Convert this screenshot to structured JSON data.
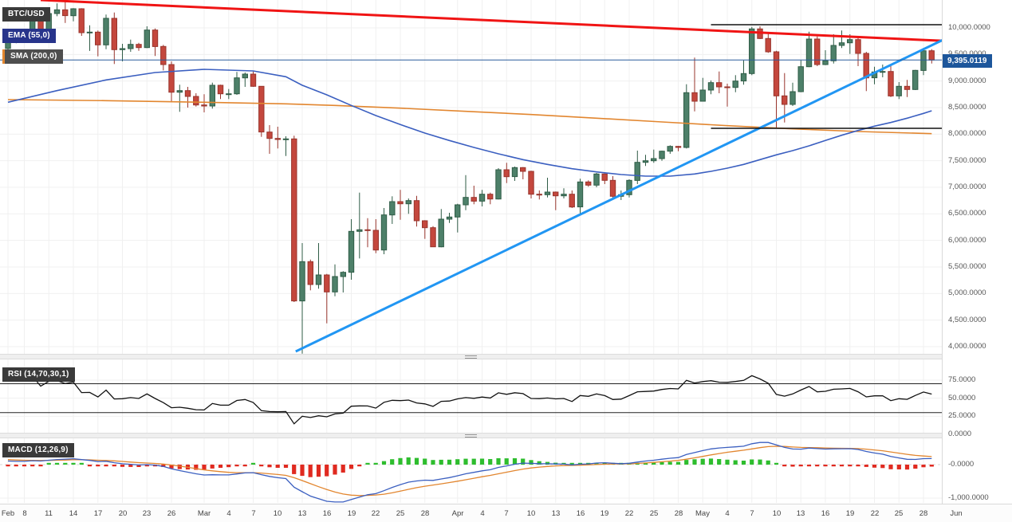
{
  "legend": {
    "symbol": "BTC/USD",
    "ema": "EMA (55,0)",
    "sma": "SMA (200,0)",
    "rsi": "RSI (14,70,30,1)",
    "macd": "MACD (12,26,9)"
  },
  "chart_data": {
    "type": "candlestick",
    "symbol": "BTC/USD",
    "colors": {
      "up": "#4d8069",
      "up_border": "#2f5c46",
      "down": "#c4473d",
      "down_border": "#98342c",
      "ema": "#3b5fc0",
      "sma": "#e2862f",
      "trend_red": "#f01414",
      "trend_blue": "#2196f3",
      "rsi_line": "#111111",
      "macd_line": "#3b5fc0",
      "macd_signal": "#e2862f",
      "hist_pos": "#2ebd2e",
      "hist_neg": "#e02a20",
      "price_line": "#2a5c9c",
      "price_badge_bg": "#1d569b"
    },
    "x_ticks": [
      [
        "Feb",
        0
      ],
      [
        "8",
        2
      ],
      [
        "11",
        5
      ],
      [
        "14",
        8
      ],
      [
        "17",
        11
      ],
      [
        "20",
        14
      ],
      [
        "23",
        17
      ],
      [
        "26",
        20
      ],
      [
        "Mar",
        24
      ],
      [
        "4",
        27
      ],
      [
        "7",
        30
      ],
      [
        "10",
        33
      ],
      [
        "13",
        36
      ],
      [
        "16",
        39
      ],
      [
        "19",
        42
      ],
      [
        "22",
        45
      ],
      [
        "25",
        48
      ],
      [
        "28",
        51
      ],
      [
        "Apr",
        55
      ],
      [
        "4",
        58
      ],
      [
        "7",
        61
      ],
      [
        "10",
        64
      ],
      [
        "13",
        67
      ],
      [
        "16",
        70
      ],
      [
        "19",
        73
      ],
      [
        "22",
        76
      ],
      [
        "25",
        79
      ],
      [
        "28",
        82
      ],
      [
        "May",
        85
      ],
      [
        "4",
        88
      ],
      [
        "7",
        91
      ],
      [
        "10",
        94
      ],
      [
        "13",
        97
      ],
      [
        "16",
        100
      ],
      [
        "19",
        103
      ],
      [
        "22",
        106
      ],
      [
        "25",
        109
      ],
      [
        "28",
        112
      ],
      [
        "Jun",
        116
      ]
    ],
    "candles": [
      [
        9613,
        9768,
        9589,
        9758
      ],
      [
        9758,
        9880,
        9711,
        9800
      ],
      [
        9800,
        9945,
        9745,
        9900
      ],
      [
        9900,
        10160,
        9859,
        10150
      ],
      [
        10150,
        10200,
        9717,
        9850
      ],
      [
        9850,
        10310,
        9813,
        10270
      ],
      [
        10270,
        10460,
        10219,
        10340
      ],
      [
        10340,
        10500,
        10093,
        10230
      ],
      [
        10230,
        10370,
        10123,
        10360
      ],
      [
        10360,
        10370,
        9850,
        9910
      ],
      [
        9910,
        10050,
        9566,
        9920
      ],
      [
        9920,
        9950,
        9465,
        9680
      ],
      [
        9680,
        10250,
        9600,
        10180
      ],
      [
        10180,
        10290,
        9320,
        9590
      ],
      [
        9590,
        9700,
        9370,
        9610
      ],
      [
        9610,
        9780,
        9550,
        9690
      ],
      [
        9690,
        9720,
        9570,
        9630
      ],
      [
        9630,
        10030,
        9620,
        9960
      ],
      [
        9960,
        9990,
        9470,
        9650
      ],
      [
        9650,
        9680,
        9200,
        9310
      ],
      [
        9310,
        9370,
        8600,
        8790
      ],
      [
        8790,
        8930,
        8420,
        8820
      ],
      [
        8820,
        8890,
        8500,
        8710
      ],
      [
        8710,
        8770,
        8520,
        8550
      ],
      [
        8550,
        8750,
        8410,
        8530
      ],
      [
        8530,
        8970,
        8480,
        8920
      ],
      [
        8920,
        8930,
        8660,
        8760
      ],
      [
        8760,
        8850,
        8660,
        8760
      ],
      [
        8760,
        9170,
        8740,
        9060
      ],
      [
        9060,
        9160,
        8890,
        9130
      ],
      [
        9130,
        9180,
        8890,
        8900
      ],
      [
        8900,
        8900,
        7950,
        8040
      ],
      [
        8040,
        8170,
        7630,
        7920
      ],
      [
        7920,
        8140,
        7730,
        7900
      ],
      [
        7900,
        7960,
        7590,
        7910
      ],
      [
        7910,
        7970,
        4840,
        4860
      ],
      [
        4860,
        5950,
        3870,
        5600
      ],
      [
        5600,
        5640,
        5060,
        5170
      ],
      [
        5170,
        5950,
        5090,
        5350
      ],
      [
        5350,
        5370,
        4440,
        5030
      ],
      [
        5030,
        5550,
        4950,
        5320
      ],
      [
        5320,
        5420,
        5020,
        5400
      ],
      [
        5400,
        6400,
        5260,
        6170
      ],
      [
        6170,
        6900,
        5660,
        6200
      ],
      [
        6200,
        6420,
        5870,
        6190
      ],
      [
        6190,
        6400,
        5760,
        5820
      ],
      [
        5820,
        6610,
        5740,
        6480
      ],
      [
        6480,
        6830,
        6310,
        6730
      ],
      [
        6730,
        6950,
        6390,
        6690
      ],
      [
        6690,
        6790,
        6500,
        6750
      ],
      [
        6750,
        6840,
        6260,
        6370
      ],
      [
        6370,
        6380,
        6030,
        6240
      ],
      [
        6240,
        6270,
        5880,
        5880
      ],
      [
        5880,
        6590,
        5870,
        6400
      ],
      [
        6400,
        6520,
        6330,
        6440
      ],
      [
        6440,
        6690,
        6150,
        6670
      ],
      [
        6670,
        7230,
        6570,
        6810
      ],
      [
        6810,
        7030,
        6680,
        6740
      ],
      [
        6740,
        6950,
        6640,
        6870
      ],
      [
        6870,
        6900,
        6680,
        6780
      ],
      [
        6780,
        7360,
        6770,
        7330
      ],
      [
        7330,
        7460,
        7080,
        7200
      ],
      [
        7200,
        7390,
        7120,
        7370
      ],
      [
        7370,
        7380,
        7150,
        7300
      ],
      [
        7300,
        7310,
        6790,
        6870
      ],
      [
        6870,
        6940,
        6770,
        6860
      ],
      [
        6860,
        7180,
        6810,
        6910
      ],
      [
        6910,
        6920,
        6570,
        6840
      ],
      [
        6840,
        6980,
        6790,
        6870
      ],
      [
        6870,
        6940,
        6610,
        6630
      ],
      [
        6630,
        7160,
        6470,
        7100
      ],
      [
        7100,
        7130,
        7010,
        7040
      ],
      [
        7040,
        7270,
        7000,
        7250
      ],
      [
        7250,
        7260,
        7060,
        7130
      ],
      [
        7130,
        7210,
        6760,
        6830
      ],
      [
        6830,
        6940,
        6760,
        6860
      ],
      [
        6860,
        7150,
        6810,
        7130
      ],
      [
        7130,
        7690,
        7060,
        7470
      ],
      [
        7470,
        7610,
        7400,
        7500
      ],
      [
        7500,
        7710,
        7460,
        7540
      ],
      [
        7540,
        7690,
        7500,
        7680
      ],
      [
        7680,
        7790,
        7630,
        7770
      ],
      [
        7770,
        7780,
        7680,
        7750
      ],
      [
        7750,
        8940,
        7730,
        8780
      ],
      [
        8780,
        9440,
        8430,
        8620
      ],
      [
        8620,
        9060,
        8620,
        8830
      ],
      [
        8830,
        9010,
        8750,
        8970
      ],
      [
        8970,
        9180,
        8770,
        8890
      ],
      [
        8890,
        8950,
        8520,
        8880
      ],
      [
        8880,
        9110,
        8790,
        9000
      ],
      [
        9000,
        9390,
        8930,
        9140
      ],
      [
        9140,
        10020,
        9110,
        9980
      ],
      [
        9980,
        10030,
        9790,
        9800
      ],
      [
        9800,
        9910,
        9530,
        9550
      ],
      [
        9550,
        9570,
        8120,
        8720
      ],
      [
        8720,
        9150,
        8220,
        8560
      ],
      [
        8560,
        8970,
        8530,
        8800
      ],
      [
        8800,
        9390,
        8790,
        9270
      ],
      [
        9270,
        9930,
        9260,
        9790
      ],
      [
        9790,
        9840,
        9280,
        9310
      ],
      [
        9310,
        9580,
        9300,
        9380
      ],
      [
        9380,
        9880,
        9330,
        9670
      ],
      [
        9670,
        9950,
        9620,
        9720
      ],
      [
        9720,
        9880,
        9510,
        9780
      ],
      [
        9780,
        9830,
        9280,
        9520
      ],
      [
        9520,
        9550,
        8810,
        9060
      ],
      [
        9060,
        9270,
        8940,
        9170
      ],
      [
        9170,
        9310,
        9070,
        9180
      ],
      [
        9180,
        9300,
        8700,
        8720
      ],
      [
        8720,
        8980,
        8660,
        8900
      ],
      [
        8900,
        9020,
        8700,
        8840
      ],
      [
        8840,
        9210,
        8830,
        9200
      ],
      [
        9200,
        9620,
        9110,
        9570
      ],
      [
        9570,
        9600,
        9330,
        9395
      ]
    ],
    "main_pane": {
      "ylim": [
        4000,
        10000
      ],
      "y_ticks": [
        {
          "label": "10,000.0000",
          "value": 10000
        },
        {
          "label": "9,500.0000",
          "value": 9500
        },
        {
          "label": "9,000.0000",
          "value": 9000
        },
        {
          "label": "8,500.0000",
          "value": 8500
        },
        {
          "label": "8,000.0000",
          "value": 8000
        },
        {
          "label": "7,500.0000",
          "value": 7500
        },
        {
          "label": "7,000.0000",
          "value": 7000
        },
        {
          "label": "6,500.0000",
          "value": 6500
        },
        {
          "label": "6,000.0000",
          "value": 6000
        },
        {
          "label": "5,500.0000",
          "value": 5500
        },
        {
          "label": "5,000.0000",
          "value": 5000
        },
        {
          "label": "4,500.0000",
          "value": 4500
        },
        {
          "label": "4,000.0000",
          "value": 4000
        }
      ],
      "current_price": 9395.0119,
      "current_price_label": "9,395.0119",
      "ema55_points": [
        [
          0,
          8600
        ],
        [
          6,
          8820
        ],
        [
          12,
          9020
        ],
        [
          18,
          9160
        ],
        [
          24,
          9220
        ],
        [
          30,
          9190
        ],
        [
          34,
          9080
        ],
        [
          36,
          8920
        ],
        [
          39,
          8740
        ],
        [
          42,
          8540
        ],
        [
          45,
          8350
        ],
        [
          48,
          8180
        ],
        [
          51,
          8020
        ],
        [
          54,
          7880
        ],
        [
          57,
          7750
        ],
        [
          60,
          7630
        ],
        [
          63,
          7520
        ],
        [
          66,
          7430
        ],
        [
          69,
          7350
        ],
        [
          72,
          7290
        ],
        [
          75,
          7240
        ],
        [
          78,
          7210
        ],
        [
          81,
          7210
        ],
        [
          84,
          7250
        ],
        [
          86,
          7300
        ],
        [
          88,
          7360
        ],
        [
          90,
          7430
        ],
        [
          92,
          7520
        ],
        [
          94,
          7610
        ],
        [
          96,
          7690
        ],
        [
          98,
          7780
        ],
        [
          100,
          7880
        ],
        [
          102,
          7980
        ],
        [
          104,
          8070
        ],
        [
          106,
          8150
        ],
        [
          108,
          8220
        ],
        [
          110,
          8300
        ],
        [
          112,
          8390
        ],
        [
          113,
          8440
        ]
      ],
      "sma200_points": [
        [
          0,
          8650
        ],
        [
          12,
          8630
        ],
        [
          24,
          8600
        ],
        [
          34,
          8570
        ],
        [
          40,
          8540
        ],
        [
          48,
          8490
        ],
        [
          56,
          8430
        ],
        [
          64,
          8370
        ],
        [
          72,
          8300
        ],
        [
          80,
          8230
        ],
        [
          88,
          8160
        ],
        [
          96,
          8100
        ],
        [
          104,
          8050
        ],
        [
          113,
          8010
        ]
      ],
      "trendlines": [
        {
          "name": "descending-resistance",
          "from_index": 4,
          "from_price": 10525,
          "to_index": 116,
          "to_price": 9745,
          "color": "#f01414",
          "width": 3
        },
        {
          "name": "ascending-support",
          "from_index": 35.2,
          "from_price": 3910,
          "to_index": 116,
          "to_price": 9895,
          "color": "#2196f3",
          "width": 3
        }
      ],
      "horizontal_segments": [
        {
          "price": 10060,
          "from_index": 86
        },
        {
          "price": 8110,
          "from_index": 86
        }
      ]
    },
    "rsi_pane": {
      "period": 14,
      "overbought": 70,
      "oversold": 30,
      "ylim": [
        0,
        100
      ],
      "y_ticks": [
        {
          "label": "75.0000",
          "value": 75
        },
        {
          "label": "50.0000",
          "value": 50
        },
        {
          "label": "25.0000",
          "value": 25
        },
        {
          "label": "0.0000",
          "value": 0
        }
      ]
    },
    "macd_pane": {
      "fast": 12,
      "slow": 26,
      "signal": 9,
      "y_ticks": [
        {
          "label": "-0.0000",
          "value": 0
        },
        {
          "label": "-1,000.0000",
          "value": -1000
        }
      ]
    }
  }
}
